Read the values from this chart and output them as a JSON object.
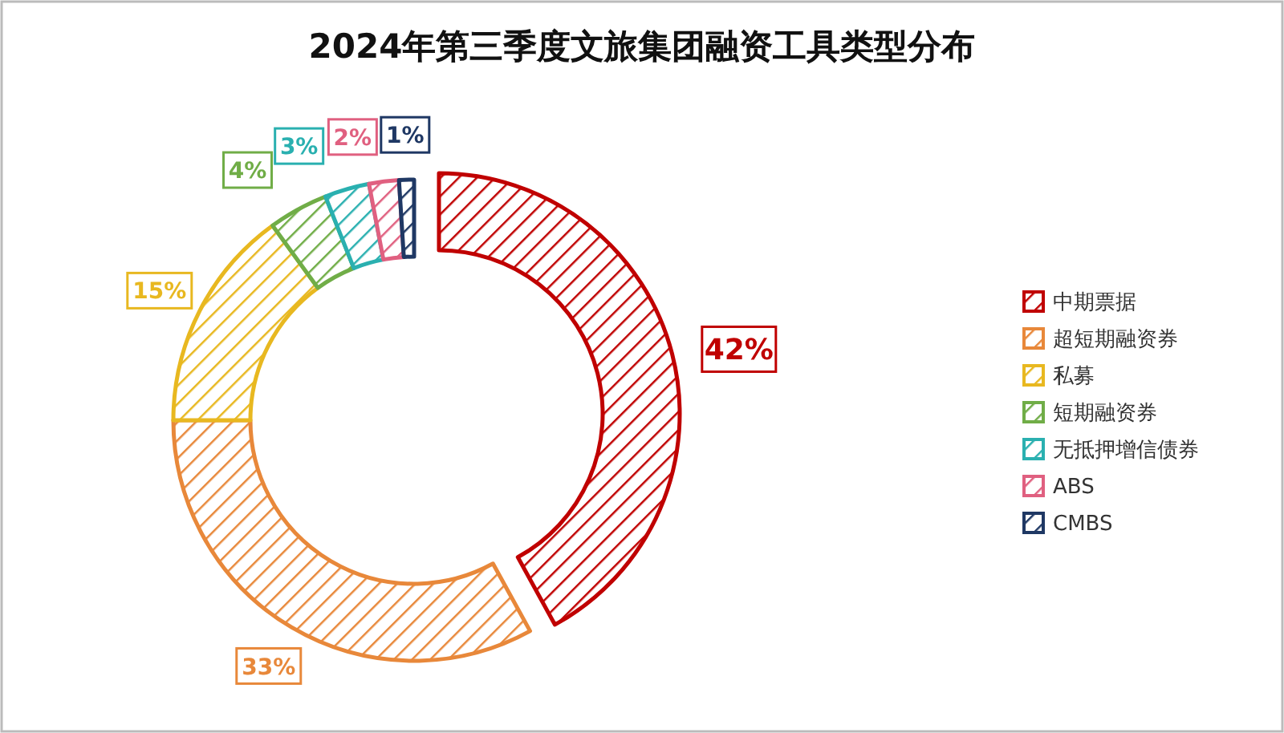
{
  "chart_data": {
    "type": "donut",
    "title": "2024年第三季度文旅集团融资工具类型分布",
    "categories": [
      "中期票据",
      "超短期融资券",
      "私募",
      "短期融资券",
      "无抵押增信债券",
      "ABS",
      "CMBS"
    ],
    "values": [
      42,
      33,
      15,
      4,
      3,
      2,
      1
    ],
    "value_labels": [
      "42%",
      "33%",
      "15%",
      "4%",
      "3%",
      "2%",
      "1%"
    ],
    "colors": [
      "#c00000",
      "#e8883a",
      "#e8b820",
      "#70ad47",
      "#2ab0b0",
      "#e06080",
      "#1f3864"
    ],
    "legend": "right"
  }
}
